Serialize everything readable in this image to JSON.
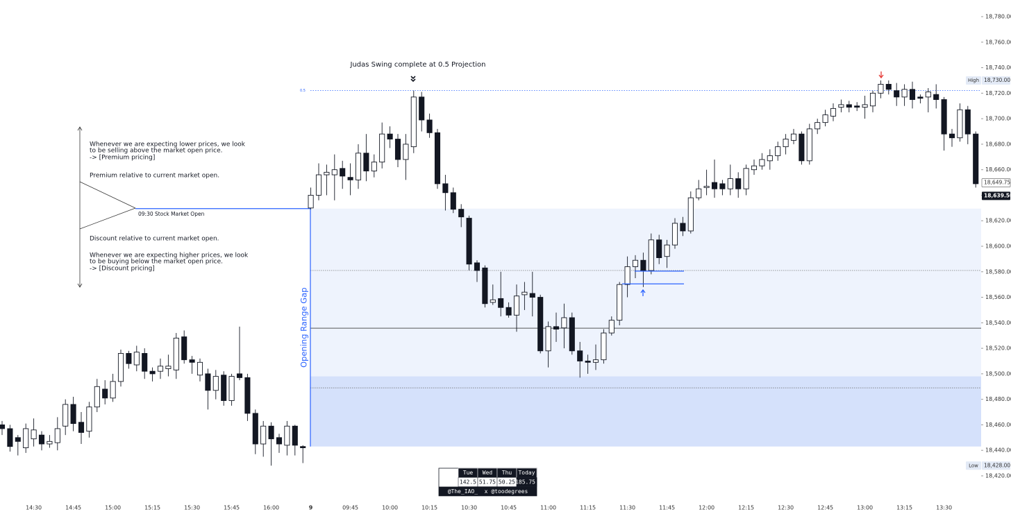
{
  "chart_data": {
    "type": "candlestick",
    "title": "Judas Swing complete at 0.5 Projection",
    "x": [
      null,
      null,
      null,
      null,
      "14:30",
      null,
      null,
      null,
      null,
      "14:45",
      null,
      null,
      null,
      null,
      "15:00",
      null,
      null,
      null,
      null,
      "15:15",
      null,
      null,
      null,
      null,
      "15:30",
      null,
      null,
      null,
      null,
      "15:45",
      null,
      null,
      null,
      null,
      "16:00",
      null,
      null,
      null,
      null,
      "9",
      null,
      null,
      null,
      null,
      "09:45",
      null,
      null,
      null,
      null,
      "10:00",
      null,
      null,
      null,
      null,
      "10:15",
      null,
      null,
      null,
      null,
      "10:30",
      null,
      null,
      null,
      null,
      "10:45",
      null,
      null,
      null,
      null,
      "11:00",
      null,
      null,
      null,
      null,
      "11:15",
      null,
      null,
      null,
      null,
      "11:30",
      null,
      null,
      null,
      null,
      "11:45",
      null,
      null,
      null,
      null,
      "12:00",
      null,
      null,
      null,
      null,
      "12:15",
      null,
      null,
      null,
      null,
      "12:30",
      null,
      null,
      null,
      null,
      "12:45",
      null,
      null,
      null,
      null,
      "13:00",
      null,
      null,
      null,
      null,
      "13:15",
      null,
      null,
      null,
      null,
      "13:30",
      null,
      null,
      null,
      null
    ],
    "open": [
      18460,
      18457,
      18450,
      18442,
      18449,
      18452,
      18445,
      18446,
      18459,
      18476,
      18462,
      18455,
      18474,
      18488,
      18481,
      18494,
      18516,
      18507,
      18516,
      18502,
      18502,
      18504,
      18503,
      18529,
      18511,
      18499,
      18500,
      18487,
      18499,
      18479,
      18500,
      18497,
      18469,
      18445,
      18459,
      18450,
      18444,
      18459,
      18443,
      18630,
      18640,
      18656,
      18656,
      18661,
      18654,
      18652,
      18673,
      18659,
      18666,
      18688,
      18684,
      18668,
      18678,
      18717,
      18699,
      18689,
      18649,
      18642,
      18629,
      18622,
      18587,
      18583,
      18556,
      18559,
      18552,
      18546,
      18562,
      18563,
      18560,
      18518,
      18537,
      18536,
      18544,
      18518,
      18510,
      18509,
      18511,
      18532,
      18542,
      18570,
      18584,
      18589,
      18581,
      18605,
      18592,
      18601,
      18618,
      18612,
      18638,
      18646,
      18650,
      18649,
      18645,
      18653,
      18645,
      18660,
      18663,
      18667,
      18671,
      18678,
      18683,
      18688,
      18667,
      18692,
      18697,
      18702,
      18709,
      18711,
      18710,
      18709,
      18710,
      18720,
      18727,
      18722,
      18717,
      18723,
      18717,
      18717,
      18719,
      18715,
      18688,
      18685,
      18707,
      18688
    ],
    "high": [
      18463,
      18460,
      18452,
      18461,
      18465,
      18455,
      18452,
      18466,
      18480,
      18482,
      18470,
      18478,
      18496,
      18495,
      18500,
      18519,
      18518,
      18522,
      18520,
      18505,
      18512,
      18515,
      18532,
      18534,
      18514,
      18512,
      18504,
      18503,
      18502,
      18500,
      18537,
      18500,
      18472,
      18463,
      18462,
      18453,
      18463,
      18460,
      18444,
      18646,
      18665,
      18664,
      18672,
      18667,
      18665,
      18680,
      18688,
      18672,
      18697,
      18694,
      18688,
      18688,
      18722,
      18721,
      18704,
      18692,
      18656,
      18646,
      18633,
      18624,
      18589,
      18585,
      18570,
      18580,
      18556,
      18570,
      18572,
      18580,
      18562,
      18541,
      18548,
      18555,
      18548,
      18525,
      18515,
      18523,
      18535,
      18545,
      18572,
      18592,
      18593,
      18595,
      18610,
      18609,
      18605,
      18622,
      18623,
      18643,
      18652,
      18660,
      18668,
      18652,
      18664,
      18658,
      18664,
      18668,
      18673,
      18676,
      18682,
      18688,
      18692,
      18690,
      18696,
      18700,
      18707,
      18712,
      18715,
      18714,
      18713,
      18718,
      18722,
      18730,
      18730,
      18728,
      18727,
      18729,
      18719,
      18724,
      18727,
      18717,
      18692,
      18712,
      18710,
      18690
    ],
    "low": [
      18452,
      18439,
      18436,
      18438,
      18443,
      18440,
      18442,
      18440,
      18452,
      18455,
      18445,
      18450,
      18470,
      18476,
      18478,
      18490,
      18504,
      18502,
      18496,
      18494,
      18496,
      18498,
      18496,
      18508,
      18500,
      18494,
      18472,
      18480,
      18475,
      18475,
      18495,
      18463,
      18437,
      18435,
      18428,
      18438,
      18436,
      18436,
      18430,
      18629,
      18636,
      18640,
      18636,
      18645,
      18640,
      18645,
      18651,
      18654,
      18661,
      18677,
      18662,
      18652,
      18673,
      18690,
      18685,
      18645,
      18628,
      18626,
      18615,
      18581,
      18572,
      18552,
      18554,
      18545,
      18544,
      18533,
      18550,
      18545,
      18516,
      18505,
      18525,
      18520,
      18515,
      18497,
      18500,
      18503,
      18508,
      18530,
      18538,
      18560,
      18575,
      18568,
      18578,
      18586,
      18583,
      18598,
      18608,
      18610,
      18636,
      18640,
      18638,
      18640,
      18640,
      18638,
      18640,
      18656,
      18660,
      18660,
      18667,
      18672,
      18680,
      18664,
      18664,
      18688,
      18694,
      18698,
      18705,
      18705,
      18706,
      18700,
      18705,
      18716,
      18719,
      18710,
      18710,
      18708,
      18712,
      18705,
      18708,
      18675,
      18678,
      18682,
      18680,
      18646
    ],
    "close": [
      18457,
      18443,
      18447,
      18457,
      18456,
      18445,
      18447,
      18457,
      18476,
      18461,
      18454,
      18474,
      18490,
      18481,
      18494,
      18516,
      18508,
      18517,
      18502,
      18500,
      18506,
      18506,
      18528,
      18511,
      18509,
      18509,
      18487,
      18498,
      18479,
      18498,
      18497,
      18469,
      18445,
      18459,
      18449,
      18445,
      18459,
      18444,
      18442,
      18640,
      18656,
      18658,
      18660,
      18655,
      18652,
      18673,
      18659,
      18666,
      18688,
      18684,
      18668,
      18680,
      18717,
      18699,
      18689,
      18649,
      18642,
      18629,
      18623,
      18586,
      18581,
      18555,
      18558,
      18552,
      18546,
      18561,
      18564,
      18560,
      18518,
      18537,
      18535,
      18544,
      18518,
      18510,
      18509,
      18511,
      18532,
      18542,
      18570,
      18584,
      18589,
      18581,
      18605,
      18591,
      18601,
      18618,
      18612,
      18638,
      18645,
      18647,
      18645,
      18645,
      18653,
      18645,
      18661,
      18663,
      18668,
      18671,
      18678,
      18684,
      18688,
      18667,
      18692,
      18697,
      18703,
      18708,
      18711,
      18709,
      18709,
      18711,
      18720,
      18727,
      18723,
      18717,
      18723,
      18715,
      18716,
      18721,
      18715,
      18688,
      18685,
      18707,
      18688,
      18649
    ],
    "up_color": "#ffffff",
    "down_color": "#131722",
    "ylim": [
      18420,
      18780
    ],
    "yticks": [
      {
        "value": 18420,
        "label": "18,420.00"
      },
      {
        "value": 18440,
        "label": "18,440.00"
      },
      {
        "value": 18460,
        "label": "18,460.00"
      },
      {
        "value": 18480,
        "label": "18,480.00"
      },
      {
        "value": 18500,
        "label": "18,500.00"
      },
      {
        "value": 18520,
        "label": "18,520.00"
      },
      {
        "value": 18540,
        "label": "18,540.00"
      },
      {
        "value": 18560,
        "label": "18,560.00"
      },
      {
        "value": 18580,
        "label": "18,580.00"
      },
      {
        "value": 18600,
        "label": "18,600.00"
      },
      {
        "value": 18620,
        "label": "18,620.00"
      },
      {
        "value": 18640,
        "label": "18,640.00"
      },
      {
        "value": 18660,
        "label": "18,660.00"
      },
      {
        "value": 18680,
        "label": "18,680.00"
      },
      {
        "value": 18700,
        "label": "18,700.00"
      },
      {
        "value": 18720,
        "label": "18,720.00"
      },
      {
        "value": 18740,
        "label": "18,740.00"
      },
      {
        "value": 18760,
        "label": "18,760.00"
      },
      {
        "value": 18780,
        "label": "18,780.00"
      }
    ],
    "price_tags": [
      {
        "name": "High",
        "value": 18730,
        "label": "18,730.00",
        "style": "range"
      },
      {
        "name": "Low",
        "value": 18428,
        "label": "18,428.00",
        "style": "range"
      },
      {
        "value": 18649.75,
        "label": "18,649.75",
        "style": "outline"
      },
      {
        "value": 18639.5,
        "label": "18,639.50",
        "style": "last"
      }
    ],
    "projection": {
      "level": 0.5,
      "price": 18722
    },
    "market_open": {
      "label": "09:30 Stock Market Open",
      "price": 18629.5
    },
    "opening_range_gap": {
      "label": "Opening Range Gap",
      "high": 18629.5,
      "low": 18443,
      "mid": 18535.75
    },
    "lower_zone": [
      18443,
      18498
    ],
    "dotted_levels": [
      18581,
      18489
    ],
    "marker_lines": [
      18580.5,
      18570.5
    ],
    "notes": {
      "premium": [
        "Whenever we are expecting lower prices, we look",
        "to be selling above the market open price.",
        "-> [Premium pricing]",
        "Premium relative to current market open."
      ],
      "discount": [
        "Discount relative to current market open.",
        "Whenever we are expecting higher prices, we look",
        "to be buying below the market open price.",
        "-> [Discount pricing]"
      ]
    },
    "stats_table": {
      "header": [
        "Tue",
        "Wed",
        "Thu",
        "Today"
      ],
      "values": [
        142.5,
        51.75,
        50.25,
        185.75
      ],
      "footer": "@The_IAO_  x @toodegrees"
    }
  }
}
